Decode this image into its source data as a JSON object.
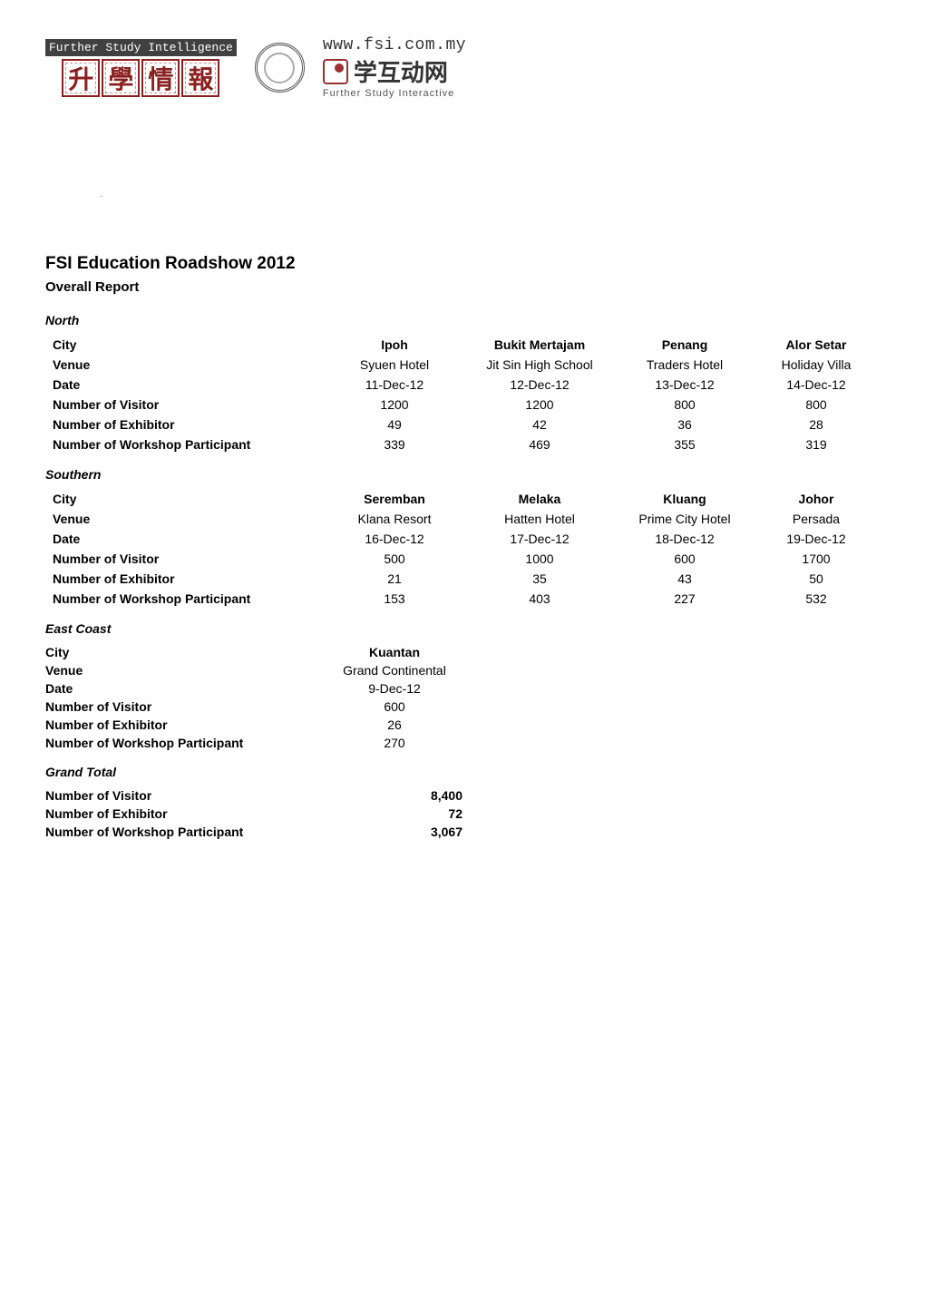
{
  "header": {
    "logo1_tag": "Further Study Intelligence",
    "logo1_chars": "升學情報",
    "logo3_url": "www.fsi.com.my",
    "logo3_cn": "学互动网",
    "logo3_sub": "Further Study Interactive"
  },
  "report": {
    "title": "FSI Education Roadshow 2012",
    "subtitle": "Overall Report"
  },
  "north": {
    "section_label": "North",
    "columns": [
      "City",
      "Ipoh",
      "Bukit Mertajam",
      "Penang",
      "Alor Setar"
    ],
    "rows": [
      {
        "label": "Venue",
        "values": [
          "Syuen Hotel",
          "Jit Sin High School",
          "Traders Hotel",
          "Holiday Villa"
        ]
      },
      {
        "label": "Date",
        "values": [
          "11-Dec-12",
          "12-Dec-12",
          "13-Dec-12",
          "14-Dec-12"
        ]
      },
      {
        "label": "Number of Visitor",
        "values": [
          "1200",
          "1200",
          "800",
          "800"
        ]
      },
      {
        "label": "Number of Exhibitor",
        "values": [
          "49",
          "42",
          "36",
          "28"
        ]
      },
      {
        "label": "Number of Workshop Participant",
        "values": [
          "339",
          "469",
          "355",
          "319"
        ]
      }
    ],
    "col_widths": [
      "310px",
      "150px",
      "170px",
      "150px",
      "140px"
    ]
  },
  "southern": {
    "section_label": "Southern",
    "columns": [
      "City",
      "Seremban",
      "Melaka",
      "Kluang",
      "Johor"
    ],
    "rows": [
      {
        "label": "Venue",
        "values": [
          "Klana Resort",
          "Hatten Hotel",
          "Prime City Hotel",
          "Persada"
        ]
      },
      {
        "label": "Date",
        "values": [
          "16-Dec-12",
          "17-Dec-12",
          "18-Dec-12",
          "19-Dec-12"
        ]
      },
      {
        "label": "Number of Visitor",
        "values": [
          "500",
          "1000",
          "600",
          "1700"
        ]
      },
      {
        "label": "Number of Exhibitor",
        "values": [
          "21",
          "35",
          "43",
          "50"
        ]
      },
      {
        "label": "Number of Workshop Participant",
        "values": [
          "153",
          "403",
          "227",
          "532"
        ]
      }
    ],
    "col_widths": [
      "310px",
      "150px",
      "170px",
      "150px",
      "140px"
    ]
  },
  "east_coast": {
    "section_label": "East Coast",
    "rows": [
      {
        "label": "City",
        "value": "Kuantan",
        "bold": true
      },
      {
        "label": "Venue",
        "value": "Grand Continental",
        "bold": false
      },
      {
        "label": "Date",
        "value": "9-Dec-12",
        "bold": false
      },
      {
        "label": "Number of Visitor",
        "value": "600",
        "bold": false
      },
      {
        "label": "Number of Exhibitor",
        "value": "26",
        "bold": false
      },
      {
        "label": "Number of Workshop Participant",
        "value": "270",
        "bold": false
      }
    ]
  },
  "grand_total": {
    "section_label": "Grand Total",
    "rows": [
      {
        "label": "Number of Visitor",
        "value": "8,400"
      },
      {
        "label": "Number of Exhibitor",
        "value": "72"
      },
      {
        "label": "Number of Workshop Participant",
        "value": "3,067"
      }
    ]
  },
  "style": {
    "page_bg": "#ffffff",
    "text_color": "#000000",
    "title_fontsize": 19,
    "subtitle_fontsize": 15,
    "body_fontsize": 14,
    "section_label_fontstyle": "italic bold",
    "font_family": "Arial, Helvetica, sans-serif"
  }
}
